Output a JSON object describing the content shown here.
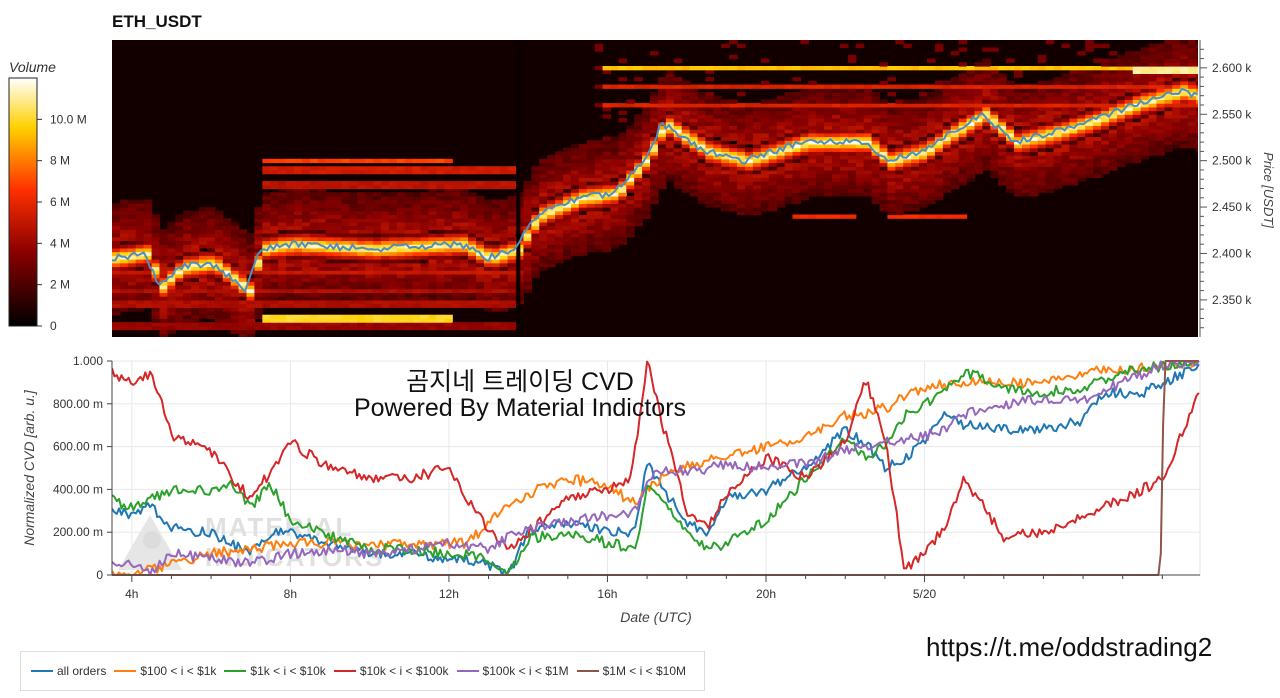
{
  "title": "ETH_USDT",
  "watermark": {
    "line1": "곰지네 트레이딩 CVD",
    "line2": "Powered By Material Indictors",
    "logo_text": "MATERIAL INDICATORS"
  },
  "link": "https://t.me/oddstrading2",
  "colors": {
    "all orders": "#1f77b4",
    "$100 < i < $1k": "#ff7f0e",
    "$1k < i < $10k": "#2ca02c",
    "$10k < i < $100k": "#d62728",
    "$100k < i < $1M": "#9467bd",
    "$1M < i < $10M": "#8c564b",
    "price_line": "#4a90c0"
  },
  "chart_data": [
    {
      "type": "heatmap",
      "name": "orderbook-heatmap",
      "title": "ETH_USDT",
      "xlabel": "",
      "ylabel": "Price [USDT]",
      "xlim": [
        3.5,
        30.95
      ],
      "ylim": [
        2310,
        2630
      ],
      "yticks": [
        2350,
        2400,
        2450,
        2500,
        2550,
        2600
      ],
      "ytick_labels": [
        "2.350 k",
        "2.400 k",
        "2.450 k",
        "2.500 k",
        "2.550 k",
        "2.600 k"
      ],
      "colorbar": {
        "title": "Volume",
        "range": [
          0,
          12
        ],
        "ticks": [
          0,
          2,
          4,
          6,
          8,
          10
        ],
        "tick_labels": [
          "0",
          "2 M",
          "4 M",
          "6 M",
          "8 M",
          "10.0 M"
        ]
      },
      "price": {
        "x": [
          3.5,
          4.3,
          4.7,
          5.2,
          6.0,
          6.9,
          7.2,
          8.0,
          10.0,
          12.3,
          13.0,
          13.7,
          14.2,
          15.3,
          16.2,
          16.6,
          17.0,
          17.4,
          18.5,
          19.5,
          21.0,
          22.5,
          23.1,
          24.0,
          24.5,
          25.5,
          26.3,
          27.3,
          28.4,
          29.3,
          30.5,
          30.95
        ],
        "y": [
          2395,
          2400,
          2365,
          2385,
          2390,
          2360,
          2405,
          2410,
          2405,
          2410,
          2395,
          2405,
          2440,
          2460,
          2465,
          2485,
          2505,
          2540,
          2510,
          2500,
          2520,
          2520,
          2500,
          2510,
          2525,
          2550,
          2520,
          2530,
          2545,
          2560,
          2575,
          2570
        ]
      },
      "levels": [
        {
          "price": 2600,
          "x_start": 15.7,
          "x_end": 30.95,
          "intensity": 0.75
        },
        {
          "price": 2598,
          "x_start": 29.2,
          "x_end": 30.95,
          "intensity": 0.9
        },
        {
          "price": 2580,
          "x_start": 15.7,
          "x_end": 30.95,
          "intensity": 0.45
        },
        {
          "price": 2560,
          "x_start": 15.7,
          "x_end": 30.95,
          "intensity": 0.45
        },
        {
          "price": 2500,
          "x_start": 7.2,
          "x_end": 12.0,
          "intensity": 0.55
        },
        {
          "price": 2490,
          "x_start": 7.2,
          "x_end": 13.6,
          "intensity": 0.42
        },
        {
          "price": 2475,
          "x_start": 7.2,
          "x_end": 13.6,
          "intensity": 0.38
        },
        {
          "price": 2440,
          "x_start": 20.5,
          "x_end": 22.2,
          "intensity": 0.5
        },
        {
          "price": 2440,
          "x_start": 23.0,
          "x_end": 25.0,
          "intensity": 0.5
        },
        {
          "price": 2380,
          "x_start": 3.5,
          "x_end": 13.6,
          "intensity": 0.4
        },
        {
          "price": 2360,
          "x_start": 3.5,
          "x_end": 13.6,
          "intensity": 0.35
        },
        {
          "price": 2345,
          "x_start": 3.5,
          "x_end": 13.6,
          "intensity": 0.35
        },
        {
          "price": 2330,
          "x_start": 7.3,
          "x_end": 12.0,
          "intensity": 0.8
        },
        {
          "price": 2322,
          "x_start": 3.5,
          "x_end": 13.6,
          "intensity": 0.3
        }
      ]
    },
    {
      "type": "line",
      "name": "normalized-cvd",
      "title": "",
      "xlabel": "Date (UTC)",
      "ylabel": "Normalized CVD [arb. u.]",
      "xlim": [
        3.5,
        30.95
      ],
      "ylim": [
        0,
        1
      ],
      "xticks": [
        4,
        8,
        12,
        16,
        20,
        24
      ],
      "xtick_labels": [
        "4h",
        "8h",
        "12h",
        "16h",
        "20h",
        "5/20"
      ],
      "yticks": [
        0,
        0.2,
        0.4,
        0.6,
        0.8,
        1.0
      ],
      "ytick_labels": [
        "0",
        "200.00 m",
        "400.00 m",
        "600.00 m",
        "800.00 m",
        "1.000"
      ],
      "series": [
        {
          "name": "all orders",
          "x": [
            3.5,
            4.0,
            4.5,
            5.0,
            5.5,
            6.0,
            6.5,
            7.0,
            7.5,
            8.0,
            9.0,
            10.0,
            11.0,
            12.0,
            13.0,
            13.5,
            14.0,
            15.0,
            16.0,
            16.7,
            17.0,
            17.4,
            18.0,
            18.5,
            19.0,
            20.0,
            21.0,
            22.0,
            22.5,
            23.0,
            23.5,
            24.0,
            24.5,
            25.0,
            26.0,
            27.0,
            28.0,
            28.5,
            29.5,
            30.95
          ],
          "y": [
            0.3,
            0.28,
            0.32,
            0.22,
            0.2,
            0.2,
            0.14,
            0.12,
            0.2,
            0.2,
            0.15,
            0.1,
            0.1,
            0.08,
            0.05,
            0.0,
            0.2,
            0.25,
            0.2,
            0.2,
            0.52,
            0.4,
            0.25,
            0.18,
            0.35,
            0.4,
            0.5,
            0.68,
            0.62,
            0.5,
            0.55,
            0.62,
            0.75,
            0.7,
            0.68,
            0.68,
            0.72,
            0.85,
            0.85,
            0.98
          ]
        },
        {
          "name": "$100 < i < $1k",
          "x": [
            3.5,
            4.0,
            5.0,
            6.0,
            7.0,
            8.0,
            9.0,
            10.0,
            11.0,
            12.0,
            12.5,
            13.0,
            14.0,
            15.0,
            16.0,
            16.7,
            17.0,
            17.5,
            18.0,
            19.0,
            20.0,
            21.0,
            22.0,
            22.5,
            23.0,
            24.0,
            25.0,
            26.0,
            27.0,
            28.0,
            29.0,
            30.95
          ],
          "y": [
            0.0,
            0.0,
            0.05,
            0.1,
            0.12,
            0.15,
            0.15,
            0.14,
            0.14,
            0.15,
            0.15,
            0.25,
            0.38,
            0.45,
            0.42,
            0.33,
            0.4,
            0.47,
            0.52,
            0.55,
            0.6,
            0.65,
            0.75,
            0.75,
            0.78,
            0.88,
            0.9,
            0.9,
            0.9,
            0.95,
            0.96,
            1.0
          ]
        },
        {
          "name": "$1k < i < $10k",
          "x": [
            3.5,
            4.0,
            5.0,
            6.0,
            6.5,
            7.0,
            7.5,
            8.0,
            9.0,
            10.0,
            11.0,
            12.0,
            13.0,
            13.5,
            14.0,
            15.0,
            16.0,
            16.7,
            17.0,
            17.5,
            18.0,
            18.5,
            19.0,
            20.0,
            21.0,
            22.0,
            22.5,
            23.0,
            23.5,
            24.0,
            24.5,
            25.0,
            26.0,
            27.0,
            28.0,
            29.0,
            30.95
          ],
          "y": [
            0.35,
            0.32,
            0.4,
            0.4,
            0.42,
            0.32,
            0.42,
            0.26,
            0.18,
            0.12,
            0.12,
            0.1,
            0.08,
            0.0,
            0.17,
            0.2,
            0.15,
            0.12,
            0.4,
            0.32,
            0.22,
            0.12,
            0.15,
            0.25,
            0.45,
            0.65,
            0.55,
            0.6,
            0.75,
            0.8,
            0.85,
            0.95,
            0.88,
            0.85,
            0.88,
            0.95,
            1.0
          ]
        },
        {
          "name": "$10k < i < $100k",
          "x": [
            3.5,
            4.0,
            4.5,
            5.0,
            6.0,
            7.0,
            8.0,
            9.0,
            10.0,
            11.0,
            12.0,
            12.5,
            13.0,
            13.5,
            14.0,
            15.0,
            16.0,
            16.6,
            17.0,
            17.4,
            18.0,
            18.5,
            19.0,
            20.0,
            21.0,
            22.0,
            22.5,
            23.0,
            23.5,
            24.0,
            24.5,
            25.0,
            26.0,
            27.0,
            28.0,
            29.0,
            30.0,
            30.95
          ],
          "y": [
            0.95,
            0.9,
            0.95,
            0.65,
            0.58,
            0.35,
            0.62,
            0.5,
            0.45,
            0.45,
            0.5,
            0.35,
            0.2,
            0.12,
            0.2,
            0.35,
            0.4,
            0.45,
            1.0,
            0.7,
            0.3,
            0.22,
            0.38,
            0.55,
            0.45,
            0.62,
            0.92,
            0.65,
            0.02,
            0.1,
            0.22,
            0.45,
            0.18,
            0.2,
            0.28,
            0.35,
            0.45,
            0.85
          ]
        },
        {
          "name": "$100k < i < $1M",
          "x": [
            3.5,
            4.0,
            4.5,
            5.0,
            6.0,
            7.0,
            7.5,
            8.0,
            9.0,
            10.0,
            11.0,
            12.0,
            13.0,
            13.5,
            14.0,
            15.0,
            16.0,
            16.7,
            17.0,
            17.5,
            18.0,
            19.0,
            20.0,
            21.0,
            22.0,
            23.0,
            24.0,
            24.5,
            25.0,
            26.0,
            27.0,
            28.0,
            29.0,
            30.0,
            30.95
          ],
          "y": [
            0.05,
            0.05,
            0.02,
            0.1,
            0.08,
            0.05,
            0.08,
            0.1,
            0.12,
            0.1,
            0.12,
            0.15,
            0.12,
            0.18,
            0.22,
            0.25,
            0.28,
            0.3,
            0.45,
            0.5,
            0.48,
            0.52,
            0.5,
            0.52,
            0.58,
            0.62,
            0.65,
            0.68,
            0.75,
            0.8,
            0.82,
            0.82,
            0.9,
            0.98,
            1.0
          ]
        },
        {
          "name": "$1M < i < $10M",
          "x": [
            3.5,
            10.0,
            20.0,
            29.5,
            29.95,
            30.05,
            30.95
          ],
          "y": [
            0.0,
            0.0,
            0.0,
            0.0,
            0.0,
            1.0,
            1.0
          ]
        }
      ]
    }
  ]
}
